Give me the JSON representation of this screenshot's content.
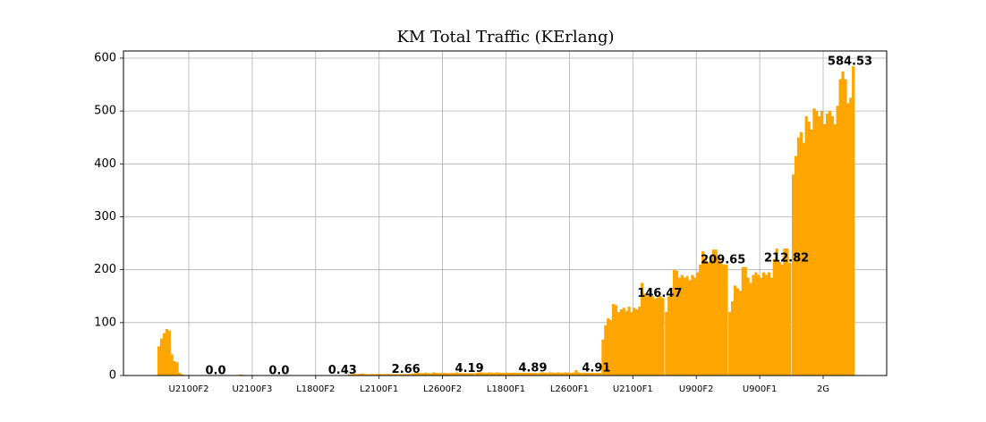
{
  "chart_data": {
    "type": "bar",
    "title": "KM Total Traffic (KErlang)",
    "color": "#ffa500",
    "grid": true,
    "ylim": [
      0,
      613.5
    ],
    "yticks": [
      0,
      100,
      200,
      300,
      400,
      500,
      600
    ],
    "groups": [
      {
        "name": "U2100F2",
        "values": [
          55,
          70,
          80,
          88,
          85,
          40,
          27,
          25,
          5,
          2,
          0,
          0,
          0,
          0,
          0,
          0,
          0,
          0,
          0,
          0,
          0,
          0,
          0,
          0
        ],
        "value_label": "0.0"
      },
      {
        "name": "U2100F3",
        "values": [
          0,
          0,
          0,
          0,
          0,
          0,
          1,
          2,
          1.5,
          1,
          0.5,
          0,
          0,
          0,
          0,
          0,
          0,
          0,
          0,
          0,
          0,
          0,
          0,
          0
        ],
        "value_label": "0.0"
      },
      {
        "name": "L1800F2",
        "values": [
          0,
          0,
          0,
          0,
          0,
          0,
          0,
          0,
          0,
          0,
          0,
          0,
          0,
          0,
          0,
          0,
          0,
          0,
          0.3,
          0.4,
          0.5,
          0.4,
          0.4,
          0.43
        ],
        "value_label": "0.43"
      },
      {
        "name": "L2100F1",
        "values": [
          2,
          2.5,
          3,
          2.5,
          3,
          4,
          3,
          2.5,
          2,
          3,
          2.5,
          2.8,
          3,
          2.5,
          2.6,
          3,
          2.5,
          2.8,
          2.4,
          2.7,
          2.5,
          2.8,
          2.6,
          2.66
        ],
        "value_label": "2.66"
      },
      {
        "name": "L2600F2",
        "values": [
          4,
          4.5,
          5,
          4.5,
          4,
          5.5,
          4.5,
          4,
          6,
          5,
          4.5,
          4.8,
          5,
          4.5,
          4.2,
          5,
          4.5,
          6,
          4.4,
          4.7,
          4.5,
          4.3,
          4.2,
          4.19
        ],
        "value_label": "4.19"
      },
      {
        "name": "L1800F1",
        "values": [
          5,
          5.5,
          6,
          5.5,
          5,
          6,
          5.5,
          5,
          6,
          5.5,
          5,
          5.2,
          5.5,
          5,
          5.2,
          5.5,
          5,
          5.3,
          5,
          5.2,
          5,
          4.9,
          4.9,
          4.89
        ],
        "value_label": "4.89"
      },
      {
        "name": "L2600F1",
        "values": [
          5,
          6,
          5.5,
          5,
          6,
          5.5,
          5,
          6,
          5.5,
          5,
          6,
          5.5,
          5,
          5.5,
          10,
          6,
          5,
          5.5,
          5,
          5.2,
          5,
          4.9,
          5,
          4.91
        ],
        "value_label": "4.91"
      },
      {
        "name": "U2100F1",
        "values": [
          68,
          95,
          108,
          105,
          135,
          133,
          120,
          125,
          128,
          122,
          130,
          120,
          128,
          125,
          130,
          175,
          155,
          150,
          165,
          150,
          145,
          148,
          150,
          146.47
        ],
        "value_label": "146.47"
      },
      {
        "name": "U900F2",
        "values": [
          120,
          150,
          150,
          200,
          198,
          185,
          190,
          185,
          188,
          180,
          190,
          185,
          195,
          210,
          235,
          220,
          215,
          225,
          238,
          238,
          225,
          215,
          210,
          209.65
        ],
        "value_label": "209.65"
      },
      {
        "name": "U900F1",
        "values": [
          120,
          140,
          170,
          165,
          160,
          205,
          205,
          185,
          175,
          190,
          195,
          190,
          185,
          195,
          190,
          195,
          185,
          220,
          240,
          215,
          210,
          240,
          240,
          212.82
        ],
        "value_label": "212.82"
      },
      {
        "name": "2G",
        "values": [
          380,
          415,
          450,
          460,
          440,
          490,
          480,
          465,
          505,
          500,
          490,
          500,
          475,
          495,
          500,
          490,
          475,
          510,
          560,
          575,
          560,
          515,
          525,
          584.53
        ],
        "value_label": "584.53"
      }
    ]
  }
}
